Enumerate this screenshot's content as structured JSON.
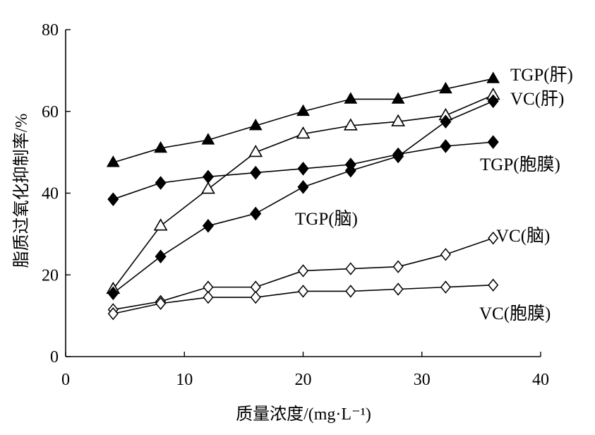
{
  "chart_data": {
    "type": "line",
    "title": "",
    "xlabel": "质量浓度/(mg·L⁻¹)",
    "ylabel": "脂质过氧化抑制率/%",
    "xlim": [
      0,
      40
    ],
    "ylim": [
      0,
      80
    ],
    "xticks": [
      0,
      10,
      20,
      30,
      40
    ],
    "yticks": [
      0,
      20,
      40,
      60,
      80
    ],
    "grid": false,
    "series": [
      {
        "name": "TGP(肝)",
        "marker": "filled-triangle",
        "x": [
          4,
          8,
          12,
          16,
          20,
          24,
          28,
          32,
          36
        ],
        "y": [
          47.5,
          51,
          53,
          56.5,
          60,
          63,
          63,
          65.5,
          68
        ]
      },
      {
        "name": "VC(肝)",
        "marker": "open-triangle",
        "x": [
          4,
          8,
          12,
          16,
          20,
          24,
          28,
          32,
          36
        ],
        "y": [
          16.5,
          32,
          41,
          50,
          54.5,
          56.5,
          57.5,
          59,
          64
        ]
      },
      {
        "name": "TGP(胞膜)",
        "marker": "filled-diamond",
        "x": [
          4,
          8,
          12,
          16,
          20,
          24,
          28,
          32,
          36
        ],
        "y": [
          38.5,
          42.5,
          44,
          45,
          46,
          47,
          49.5,
          51.5,
          52.5
        ]
      },
      {
        "name": "TGP(脑)",
        "marker": "filled-diamond",
        "x": [
          4,
          8,
          12,
          16,
          20,
          24,
          28,
          32,
          36
        ],
        "y": [
          15.5,
          24.5,
          32,
          35,
          41.5,
          45.5,
          49,
          57.5,
          62.5
        ]
      },
      {
        "name": "VC(脑)",
        "marker": "open-diamond",
        "x": [
          4,
          8,
          12,
          16,
          20,
          24,
          28,
          32,
          36
        ],
        "y": [
          11.5,
          13.5,
          17,
          17,
          21,
          21.5,
          22,
          25,
          29
        ]
      },
      {
        "name": "VC(胞膜)",
        "marker": "open-diamond",
        "x": [
          4,
          8,
          12,
          16,
          20,
          24,
          28,
          32,
          36
        ],
        "y": [
          10.5,
          13,
          14.5,
          14.5,
          16,
          16,
          16.5,
          17,
          17.5
        ]
      }
    ]
  }
}
